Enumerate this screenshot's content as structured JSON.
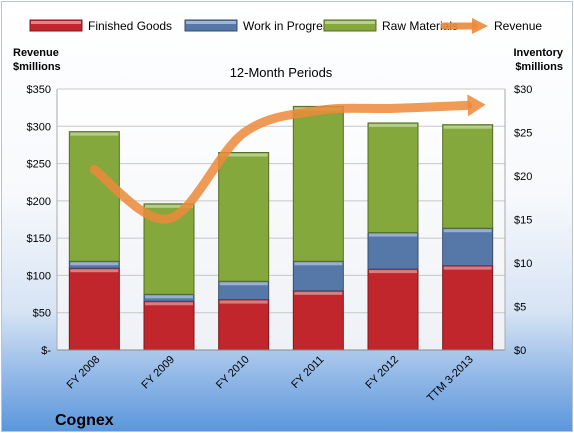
{
  "chart_data": {
    "type": "bar",
    "title": "12-Month Periods",
    "company": "Cognex",
    "left_axis_label": [
      "Revenue",
      "$millions"
    ],
    "right_axis_label": [
      "Inventory",
      "$millions"
    ],
    "categories": [
      "FY 2008",
      "FY 2009",
      "FY 2010",
      "FY 2011",
      "FY 2012",
      "TTM 3-2013"
    ],
    "stacked": true,
    "legend_position": "top",
    "grid": true,
    "bar_series": [
      {
        "name": "Finished Goods",
        "axis": "right",
        "color": "#c0262b",
        "values": [
          9.4,
          5.6,
          5.8,
          6.8,
          9.3,
          9.7
        ]
      },
      {
        "name": "Work in Progress",
        "axis": "right",
        "color": "#5578a8",
        "values": [
          0.8,
          0.8,
          2.1,
          3.4,
          4.2,
          4.3
        ]
      },
      {
        "name": "Raw Materials",
        "axis": "right",
        "color": "#84a83c",
        "values": [
          14.9,
          10.4,
          14.8,
          17.8,
          12.6,
          11.9
        ]
      }
    ],
    "line_series": [
      {
        "name": "Revenue",
        "axis": "left",
        "color": "#ec8a3a",
        "values": [
          242,
          176,
          291,
          321,
          324,
          328
        ]
      }
    ],
    "left_axis": {
      "min": 0,
      "max": 350,
      "step": 50,
      "ticks": [
        "$-",
        "$50",
        "$100",
        "$150",
        "$200",
        "$250",
        "$300",
        "$350"
      ]
    },
    "right_axis": {
      "min": 0,
      "max": 30,
      "step": 5,
      "ticks": [
        "$0",
        "$5",
        "$10",
        "$15",
        "$20",
        "$25",
        "$30"
      ]
    }
  }
}
